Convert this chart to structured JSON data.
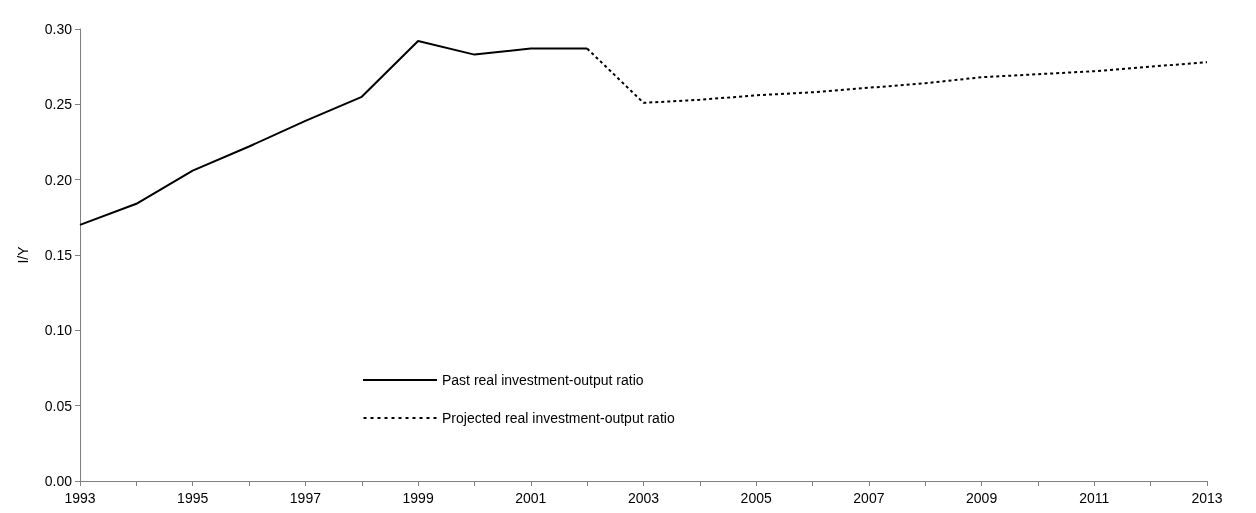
{
  "chart_data": {
    "type": "line",
    "ylabel": "I/Y",
    "xlim": [
      1993,
      2013
    ],
    "xticks": [
      1993,
      {
        "value": 1994,
        "label": null
      },
      1995,
      {
        "value": 1996,
        "label": null
      },
      1997,
      {
        "value": 1998,
        "label": null
      },
      1999,
      {
        "value": 2000,
        "label": null
      },
      2001,
      {
        "value": 2002,
        "label": null
      },
      2003,
      {
        "value": 2004,
        "label": null
      },
      2005,
      {
        "value": 2006,
        "label": null
      },
      2007,
      {
        "value": 2008,
        "label": null
      },
      2009,
      {
        "value": 2010,
        "label": null
      },
      2011,
      {
        "value": 2012,
        "label": null
      },
      2013
    ],
    "ylim": [
      0,
      0.3
    ],
    "yticks": [
      {
        "value": 0,
        "label": "0.00"
      },
      {
        "value": 0.05,
        "label": "0.05"
      },
      {
        "value": 0.1,
        "label": "0.10"
      },
      {
        "value": 0.15,
        "label": "0.15"
      },
      {
        "value": 0.2,
        "label": "0.20"
      },
      {
        "value": 0.25,
        "label": "0.25"
      },
      {
        "value": 0.3,
        "label": "0.30"
      }
    ],
    "grid": false,
    "legend": "bottom left",
    "marker": "none",
    "series": [
      {
        "name": "Past real investment-output ratio",
        "color": "#000000",
        "line_style": "solid",
        "x": [
          1993,
          1994,
          1995,
          1996,
          1997,
          1998,
          1999,
          2000,
          2001,
          2002
        ],
        "values": [
          0.17,
          0.184,
          0.206,
          0.222,
          0.239,
          0.255,
          0.292,
          0.283,
          0.287,
          0.287
        ]
      },
      {
        "name": "Projected real investment-output ratio",
        "color": "#000000",
        "line_style": "dotted",
        "x": [
          2002,
          2003,
          2004,
          2005,
          2006,
          2007,
          2008,
          2009,
          2010,
          2011,
          2012,
          2013
        ],
        "values": [
          0.287,
          0.251,
          0.253,
          0.256,
          0.258,
          0.261,
          0.264,
          0.268,
          0.27,
          0.272,
          0.275,
          0.278
        ]
      }
    ]
  }
}
